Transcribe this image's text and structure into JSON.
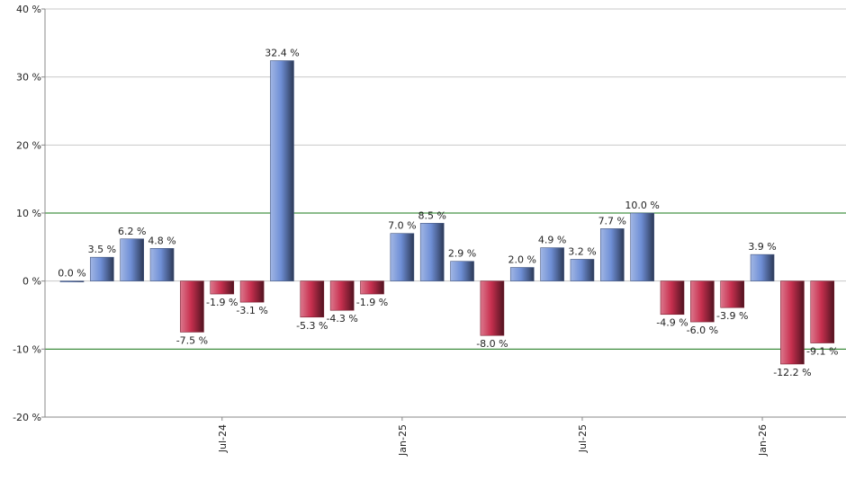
{
  "chart_data": {
    "type": "bar",
    "categories": [
      null,
      null,
      null,
      null,
      null,
      "Jul-24",
      null,
      null,
      null,
      null,
      null,
      "Jan-25",
      null,
      null,
      null,
      null,
      null,
      "Jul-25",
      null,
      null,
      null,
      null,
      null,
      "Jan-26",
      null,
      null
    ],
    "values": [
      0.0,
      3.5,
      6.2,
      4.8,
      -7.5,
      -1.9,
      -3.1,
      32.4,
      -5.3,
      -4.3,
      -1.9,
      7.0,
      8.5,
      2.9,
      -8.0,
      2.0,
      4.9,
      3.2,
      7.7,
      10.0,
      -4.9,
      -6.0,
      -3.9,
      3.9,
      -12.2,
      -9.1
    ],
    "value_labels": [
      "0.0 %",
      "3.5 %",
      "6.2 %",
      "4.8 %",
      "-7.5 %",
      "-1.9 %",
      "-3.1 %",
      "32.4 %",
      "-5.3 %",
      "-4.3 %",
      "-1.9 %",
      "7.0 %",
      "8.5 %",
      "2.9 %",
      "-8.0 %",
      "2.0 %",
      "4.9 %",
      "3.2 %",
      "7.7 %",
      "10.0 %",
      "-4.9 %",
      "-6.0 %",
      "-3.9 %",
      "3.9 %",
      "-12.2 %",
      "-9.1 %"
    ],
    "positive_color": "#6f8fd6",
    "negative_color": "#c8304f",
    "ylim": [
      -20,
      40
    ],
    "yticks": [
      {
        "value": -20,
        "label": "-20 %"
      },
      {
        "value": -10,
        "label": "-10 %"
      },
      {
        "value": 0,
        "label": "0 %"
      },
      {
        "value": 10,
        "label": "10 %"
      },
      {
        "value": 20,
        "label": "20 %"
      },
      {
        "value": 30,
        "label": "30 %"
      },
      {
        "value": 40,
        "label": "40 %"
      }
    ],
    "grid": true,
    "reference_lines": [
      10,
      -10
    ],
    "reference_color": "#1a7a1a"
  }
}
